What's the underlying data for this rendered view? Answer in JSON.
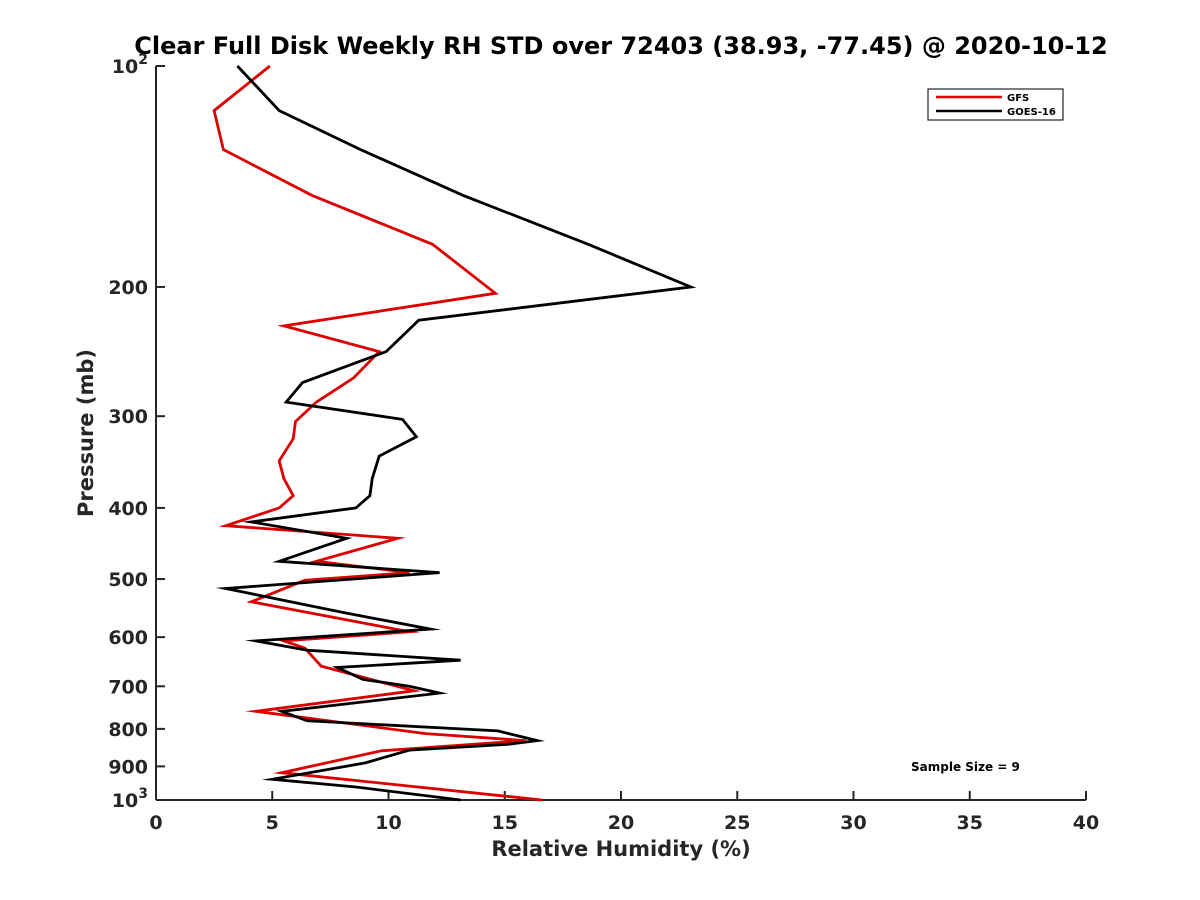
{
  "chart_data": {
    "type": "line",
    "title": "Clear Full Disk Weekly RH STD over 72403 (38.93, -77.45) @ 2020-10-12",
    "xlabel": "Relative Humidity (%)",
    "ylabel": "Pressure (mb)",
    "xlim": [
      0,
      40
    ],
    "ylim": [
      100,
      1000
    ],
    "y_scale": "log",
    "y_reversed": true,
    "x_ticks": [
      0,
      5,
      10,
      15,
      20,
      25,
      30,
      35,
      40
    ],
    "x_tick_labels": [
      "0",
      "5",
      "10",
      "15",
      "20",
      "25",
      "30",
      "35",
      "40"
    ],
    "y_ticks": [
      100,
      200,
      300,
      400,
      500,
      600,
      700,
      800,
      900,
      1000
    ],
    "y_tick_labels": [
      {
        "base": "10",
        "exp": "2"
      },
      {
        "base": "200",
        "exp": ""
      },
      {
        "base": "300",
        "exp": ""
      },
      {
        "base": "400",
        "exp": ""
      },
      {
        "base": "500",
        "exp": ""
      },
      {
        "base": "600",
        "exp": ""
      },
      {
        "base": "700",
        "exp": ""
      },
      {
        "base": "800",
        "exp": ""
      },
      {
        "base": "900",
        "exp": ""
      },
      {
        "base": "10",
        "exp": "3"
      }
    ],
    "grid": false,
    "legend_position": "top-right",
    "annotation": "Sample Size = 9",
    "series": [
      {
        "name": "GFS",
        "color": "#dd0000",
        "x": [
          4.9,
          2.5,
          2.9,
          6.7,
          11.9,
          14.6,
          5.5,
          9.6,
          8.5,
          6.9,
          6.0,
          5.9,
          5.3,
          5.5,
          5.9,
          5.3,
          3.0,
          10.4,
          6.9,
          10.9,
          6.4,
          4.1,
          10.9,
          5.5,
          6.4,
          7.1,
          11.1,
          4.3,
          11.6,
          15.9,
          9.7,
          5.4,
          16.6
        ],
        "y": [
          100,
          115,
          130,
          150,
          175,
          204,
          226,
          245,
          266,
          287,
          305,
          322,
          345,
          365,
          385,
          400,
          423,
          440,
          473,
          490,
          502,
          537,
          590,
          607,
          621,
          657,
          710,
          757,
          812,
          830,
          857,
          918,
          1000
        ]
      },
      {
        "name": "GOES-16",
        "color": "#000000",
        "x": [
          3.5,
          5.3,
          8.8,
          13.2,
          18.6,
          23.0,
          11.3,
          9.9,
          6.3,
          5.6,
          10.6,
          11.2,
          9.6,
          9.3,
          9.2,
          8.6,
          4.1,
          8.2,
          5.3,
          12.2,
          3.0,
          8.0,
          11.8,
          4.3,
          6.5,
          13.1,
          7.8,
          8.9,
          10.9,
          12.2,
          5.4,
          6.5,
          14.7,
          16.4,
          15.1,
          10.9,
          9.0,
          5.0,
          8.6,
          13.1
        ],
        "y": [
          100,
          115,
          130,
          150,
          175,
          200,
          222,
          245,
          270,
          287,
          303,
          320,
          340,
          365,
          385,
          400,
          418,
          440,
          473,
          490,
          515,
          555,
          585,
          607,
          625,
          645,
          660,
          685,
          700,
          715,
          757,
          780,
          805,
          830,
          840,
          855,
          890,
          937,
          960,
          1000
        ]
      }
    ]
  }
}
